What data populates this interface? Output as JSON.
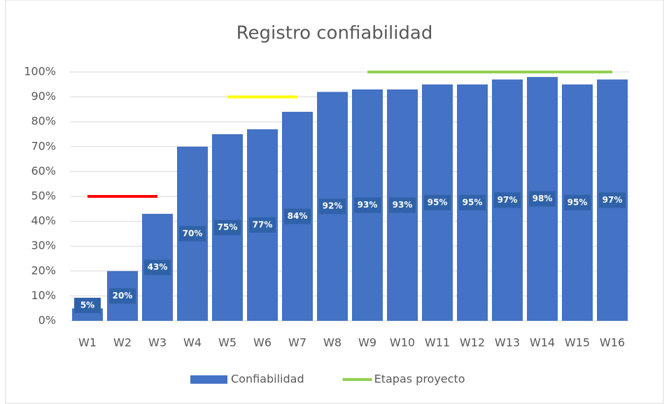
{
  "chart_data": {
    "type": "bar",
    "title": "Registro confiabilidad",
    "categories": [
      "W1",
      "W2",
      "W3",
      "W4",
      "W5",
      "W6",
      "W7",
      "W8",
      "W9",
      "W10",
      "W11",
      "W12",
      "W13",
      "W14",
      "W15",
      "W16"
    ],
    "series": [
      {
        "name": "Confiabilidad",
        "type": "bar",
        "color": "#4472c4",
        "label_color": "#2f62a8",
        "values": [
          5,
          20,
          43,
          70,
          75,
          77,
          84,
          92,
          93,
          93,
          95,
          95,
          97,
          98,
          95,
          97
        ],
        "value_labels": [
          "5%",
          "20%",
          "43%",
          "70%",
          "75%",
          "77%",
          "84%",
          "92%",
          "93%",
          "93%",
          "95%",
          "95%",
          "97%",
          "98%",
          "95%",
          "97%"
        ]
      },
      {
        "name": "Etapas proyecto",
        "type": "line",
        "color": "#92d050",
        "segment_colors": [
          "#ff0000",
          "#ffff00",
          "#92d050"
        ],
        "values": [
          50,
          50,
          50,
          null,
          90,
          90,
          90,
          null,
          100,
          100,
          100,
          100,
          100,
          100,
          100,
          100
        ]
      }
    ],
    "ylim": [
      0,
      100
    ],
    "yticks": [
      {
        "value": 0,
        "label": "0%"
      },
      {
        "value": 10,
        "label": "10%"
      },
      {
        "value": 20,
        "label": "20%"
      },
      {
        "value": 30,
        "label": "30%"
      },
      {
        "value": 40,
        "label": "40%"
      },
      {
        "value": 50,
        "label": "50%"
      },
      {
        "value": 60,
        "label": "60%"
      },
      {
        "value": 70,
        "label": "70%"
      },
      {
        "value": 80,
        "label": "80%"
      },
      {
        "value": 90,
        "label": "90%"
      },
      {
        "value": 100,
        "label": "100%"
      }
    ],
    "grid": true,
    "legend": "bottom"
  }
}
